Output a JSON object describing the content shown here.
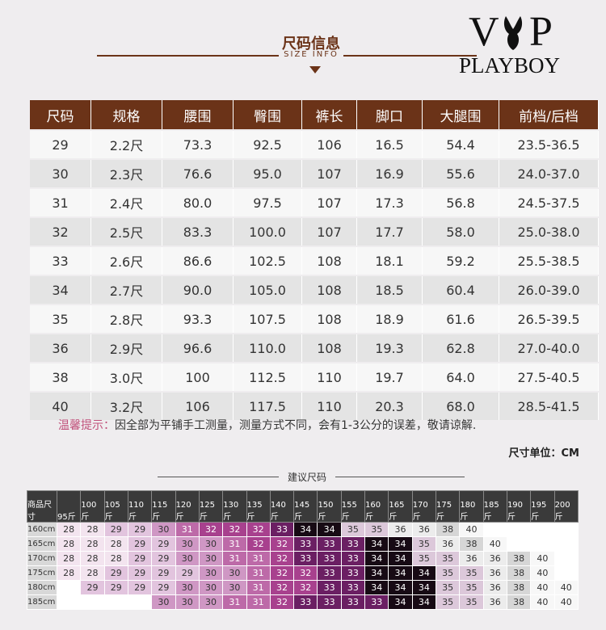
{
  "header": {
    "title": "尺码信息",
    "subtitle": "SIZE INFO"
  },
  "logo": {
    "left": "V",
    "right": "P",
    "brand": "PLAYBOY"
  },
  "table": {
    "columns": [
      "尺码",
      "规格",
      "腰围",
      "臀围",
      "裤长",
      "脚口",
      "大腿围",
      "前档/后档"
    ],
    "rows": [
      [
        "29",
        "2.2尺",
        "73.3",
        "92.5",
        "106",
        "16.5",
        "54.4",
        "23.5-36.5"
      ],
      [
        "30",
        "2.3尺",
        "76.6",
        "95.0",
        "107",
        "16.9",
        "55.6",
        "24.0-37.0"
      ],
      [
        "31",
        "2.4尺",
        "80.0",
        "97.5",
        "107",
        "17.3",
        "56.8",
        "24.5-37.5"
      ],
      [
        "32",
        "2.5尺",
        "83.3",
        "100.0",
        "107",
        "17.7",
        "58.0",
        "25.0-38.0"
      ],
      [
        "33",
        "2.6尺",
        "86.6",
        "102.5",
        "108",
        "18.1",
        "59.2",
        "25.5-38.5"
      ],
      [
        "34",
        "2.7尺",
        "90.0",
        "105.0",
        "108",
        "18.5",
        "60.4",
        "26.0-39.0"
      ],
      [
        "35",
        "2.8尺",
        "93.3",
        "107.5",
        "108",
        "18.9",
        "61.6",
        "26.5-39.5"
      ],
      [
        "36",
        "2.9尺",
        "96.6",
        "110.0",
        "108",
        "19.3",
        "62.8",
        "27.0-40.0"
      ],
      [
        "38",
        "3.0尺",
        "100",
        "112.5",
        "110",
        "19.7",
        "64.0",
        "27.5-40.5"
      ],
      [
        "40",
        "3.2尺",
        "106",
        "117.5",
        "110",
        "20.3",
        "68.0",
        "28.5-41.5"
      ]
    ]
  },
  "note": {
    "label": "温馨提示：",
    "text": "因全部为平铺手工测量，测量方式不同，会有1-3公分的误差，敬请谅解."
  },
  "unit": "尺寸单位：CM",
  "grid": {
    "title": "建议尺码",
    "corner": "商品尺寸",
    "columns": [
      "95斤",
      "100斤",
      "105斤",
      "110斤",
      "115斤",
      "120斤",
      "125斤",
      "130斤",
      "135斤",
      "140斤",
      "145斤",
      "150斤",
      "155斤",
      "160斤",
      "165斤",
      "170斤",
      "175斤",
      "180斤",
      "185斤",
      "190斤",
      "195斤",
      "200斤"
    ],
    "rows": [
      {
        "label": "160cm",
        "cells": [
          "28",
          "28",
          "29",
          "29",
          "30",
          "31",
          "32",
          "32",
          "32",
          "33",
          "34",
          "34",
          "35",
          "35",
          "36",
          "36",
          "38",
          "40",
          null,
          null,
          null,
          null
        ]
      },
      {
        "label": "165cm",
        "cells": [
          "28",
          "28",
          "28",
          "29",
          "29",
          "30",
          "30",
          "31",
          "32",
          "32",
          "33",
          "33",
          "33",
          "34",
          "34",
          "35",
          "36",
          "38",
          "40",
          null,
          null,
          null
        ]
      },
      {
        "label": "170cm",
        "cells": [
          "28",
          "28",
          "28",
          "29",
          "29",
          "30",
          "30",
          "31",
          "31",
          "32",
          "33",
          "33",
          "33",
          "34",
          "34",
          "35",
          "35",
          "36",
          "36",
          "38",
          "40",
          null
        ]
      },
      {
        "label": "175cm",
        "cells": [
          "28",
          "28",
          "29",
          "29",
          "29",
          "29",
          "30",
          "30",
          "31",
          "32",
          "32",
          "33",
          "33",
          "34",
          "34",
          "34",
          "35",
          "35",
          "36",
          "38",
          "40",
          null
        ]
      },
      {
        "label": "180cm",
        "cells": [
          null,
          "29",
          "29",
          "29",
          "29",
          "30",
          "30",
          "30",
          "31",
          "32",
          "32",
          "33",
          "33",
          "34",
          "34",
          "34",
          "35",
          "35",
          "36",
          "38",
          "40",
          "40"
        ]
      },
      {
        "label": "185cm",
        "cells": [
          null,
          null,
          null,
          null,
          "30",
          "30",
          "30",
          "31",
          "31",
          "32",
          "33",
          "33",
          "33",
          "33",
          "34",
          "34",
          "35",
          "35",
          "36",
          "38",
          "40",
          "40"
        ]
      }
    ],
    "palette": [
      "#f3e4ef",
      "#e2c4de",
      "#cf97c4",
      "#bd6aa8",
      "#a8418e",
      "#6b1f63",
      "#170a14",
      "#dcc8da",
      "#ececec",
      "#d6d6d6",
      "#f7f7f7"
    ],
    "palette_text": [
      "#333",
      "#333",
      "#333",
      "#fff",
      "#fff",
      "#fff",
      "#fff",
      "#333",
      "#333",
      "#333",
      "#333"
    ]
  }
}
